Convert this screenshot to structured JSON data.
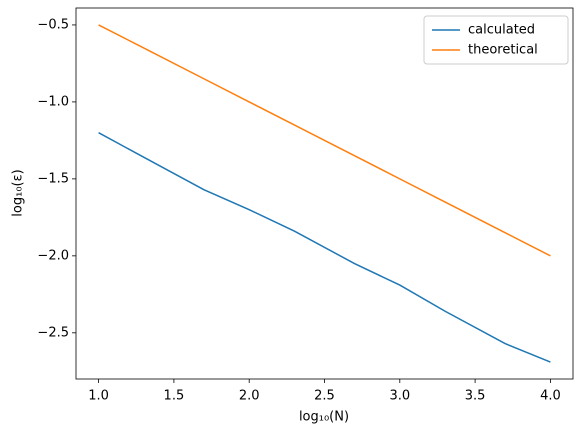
{
  "chart_data": {
    "type": "line",
    "xlabel": "log₁₀(N)",
    "ylabel": "log₁₀(ε)",
    "x": [
      1.0,
      1.301,
      1.699,
      2.0,
      2.301,
      2.699,
      3.0,
      3.301,
      3.699,
      4.0
    ],
    "series": [
      {
        "name": "calculated",
        "color": "#1f77b4",
        "values": [
          -1.2,
          -1.36,
          -1.57,
          -1.7,
          -1.84,
          -2.05,
          -2.19,
          -2.36,
          -2.57,
          -2.69
        ]
      },
      {
        "name": "theoretical",
        "color": "#ff7f0e",
        "values": [
          -0.5,
          -0.6505,
          -0.8495,
          -1.0,
          -1.1505,
          -1.3495,
          -1.5,
          -1.6505,
          -1.8495,
          -2.0
        ]
      }
    ],
    "xlim": [
      0.85,
      4.15
    ],
    "ylim": [
      -2.8,
      -0.39
    ],
    "xticks": [
      {
        "value": 1.0,
        "label": "1.0"
      },
      {
        "value": 1.5,
        "label": "1.5"
      },
      {
        "value": 2.0,
        "label": "2.0"
      },
      {
        "value": 2.5,
        "label": "2.5"
      },
      {
        "value": 3.0,
        "label": "3.0"
      },
      {
        "value": 3.5,
        "label": "3.5"
      },
      {
        "value": 4.0,
        "label": "4.0"
      }
    ],
    "yticks": [
      {
        "value": -2.5,
        "label": "−2.5"
      },
      {
        "value": -2.0,
        "label": "−2.0"
      },
      {
        "value": -1.5,
        "label": "−1.5"
      },
      {
        "value": -1.0,
        "label": "−1.0"
      },
      {
        "value": -0.5,
        "label": "−0.5"
      }
    ],
    "grid": false,
    "legend": "upper-right"
  }
}
